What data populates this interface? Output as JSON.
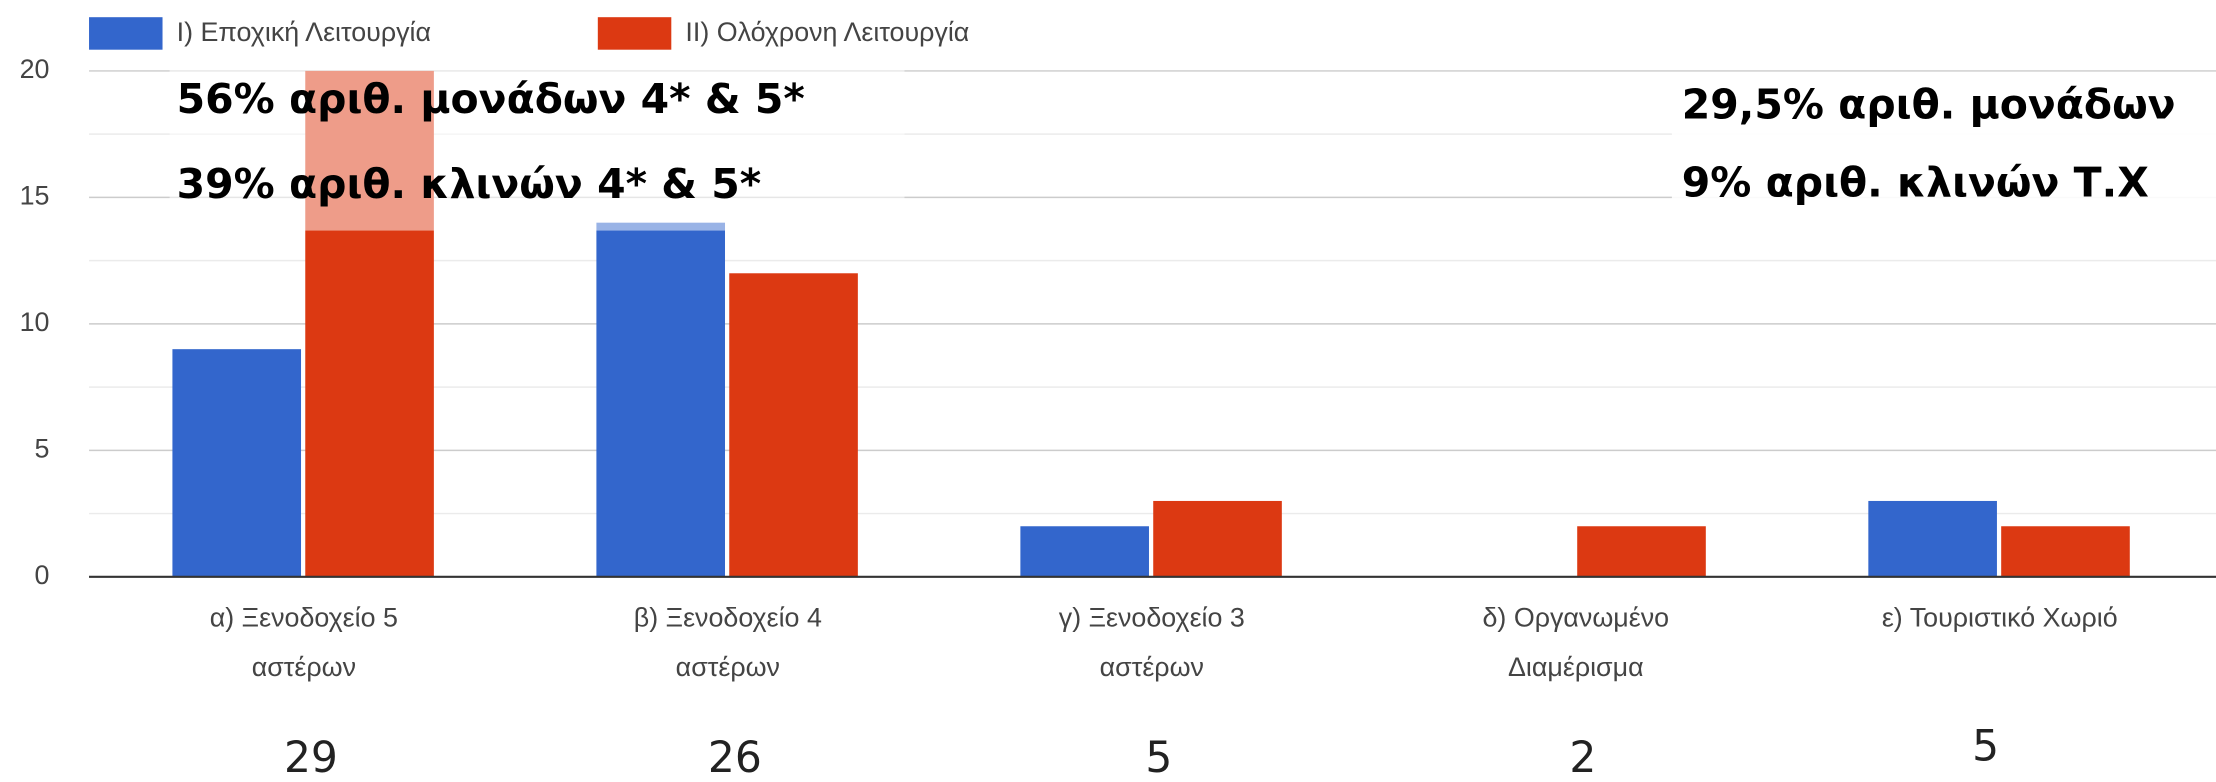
{
  "chart_data": {
    "type": "bar",
    "categories": [
      [
        "α) Ξενοδοχείο 5",
        "αστέρων"
      ],
      [
        "β) Ξενοδοχείο 4",
        "αστέρων"
      ],
      [
        "γ) Ξενοδοχείο 3",
        "αστέρων"
      ],
      [
        "δ) Οργανωμένο",
        "Διαμέρισμα"
      ],
      [
        "ε) Τουριστικό Χωριό"
      ]
    ],
    "series": [
      {
        "name": "I) Εποχική Λειτουργία",
        "color": "#3366cc",
        "values": [
          9,
          14,
          2,
          0,
          3
        ]
      },
      {
        "name": "II) Ολόχρονη Λειτουργία",
        "color": "#dc3912",
        "values": [
          20,
          12,
          3,
          2,
          2
        ]
      }
    ],
    "totals": [
      "29",
      "26",
      "5",
      "2",
      "5"
    ],
    "annotations": [
      "56%  αριθ. μονάδων 4* & 5*",
      "39% αριθ. κλινών 4* & 5*",
      "29,5% αριθ. μονάδων",
      "9% αριθ. κλινών Τ.Χ"
    ],
    "ylim": [
      0,
      20
    ],
    "yticks": [
      0,
      5,
      10,
      15,
      20
    ],
    "grid": true,
    "legend": "top"
  }
}
